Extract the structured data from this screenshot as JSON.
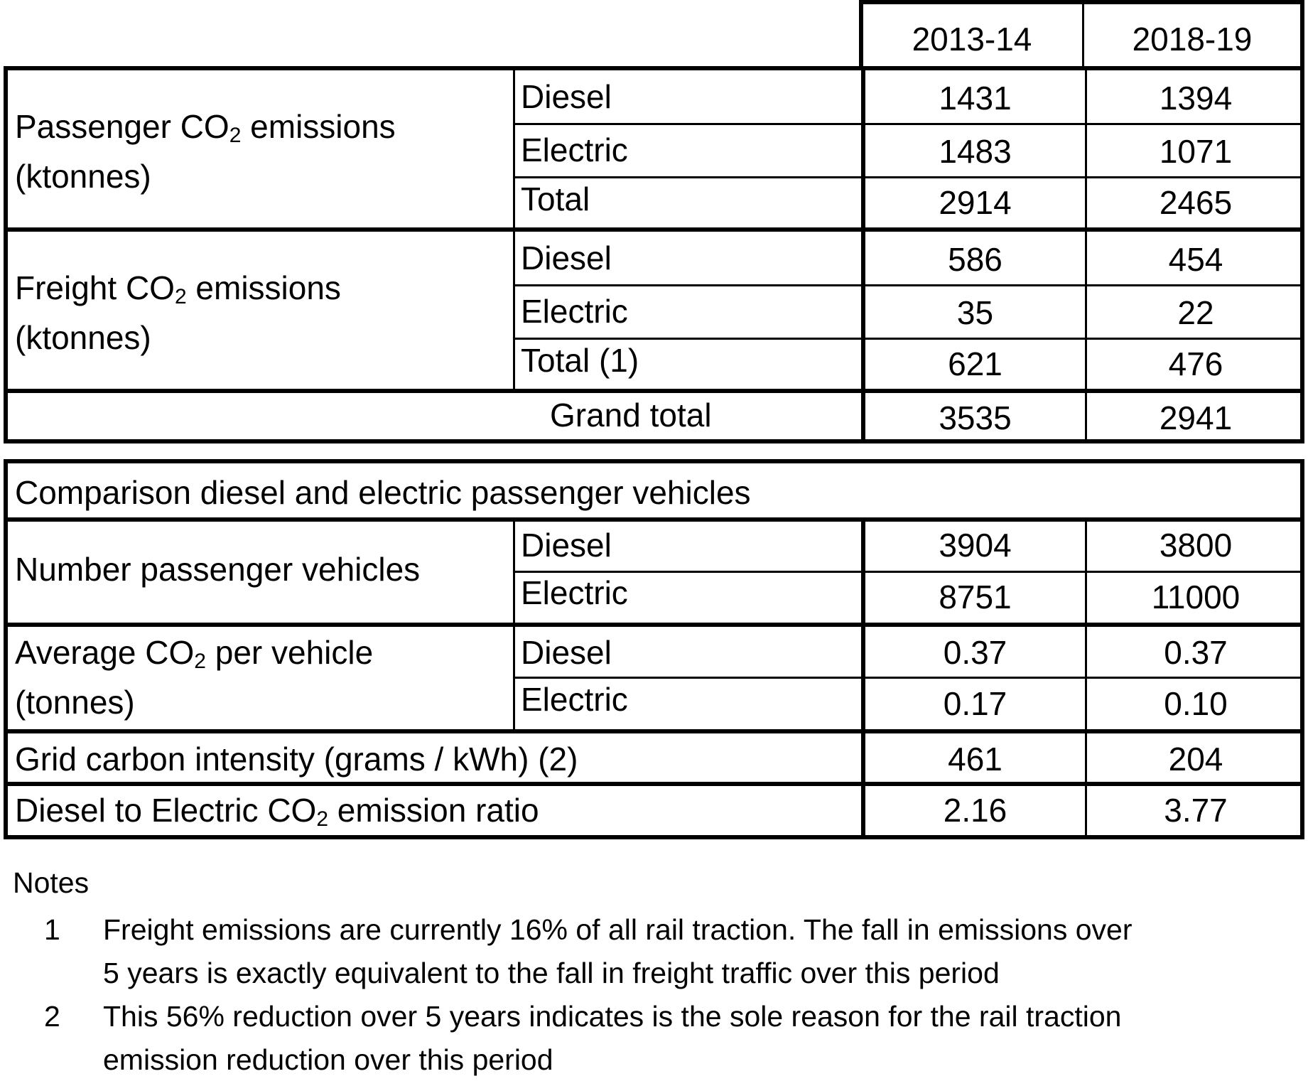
{
  "header": {
    "col1": "2013-14",
    "col2": "2018-19"
  },
  "passenger": {
    "label_line1": "Passenger CO",
    "label_sub": "2",
    "label_line1_tail": " emissions",
    "label_line2": "(ktonnes)",
    "rows": [
      {
        "type": "Diesel",
        "v1": "1431",
        "v2": "1394"
      },
      {
        "type": "Electric",
        "v1": "1483",
        "v2": "1071"
      },
      {
        "type": "Total",
        "v1": "2914",
        "v2": "2465"
      }
    ]
  },
  "freight": {
    "label_line1": "Freight CO",
    "label_sub": "2",
    "label_line1_tail": " emissions",
    "label_line2": "(ktonnes)",
    "rows": [
      {
        "type": "Diesel",
        "v1": "586",
        "v2": "454"
      },
      {
        "type": "Electric",
        "v1": "35",
        "v2": "22"
      },
      {
        "type": "Total (1)",
        "v1": "621",
        "v2": "476"
      }
    ]
  },
  "grand_total": {
    "label": "Grand total",
    "v1": "3535",
    "v2": "2941"
  },
  "comparison": {
    "title": "Comparison diesel and electric passenger vehicles",
    "number_vehicles": {
      "label": "Number passenger vehicles",
      "rows": [
        {
          "type": "Diesel",
          "v1": "3904",
          "v2": "3800"
        },
        {
          "type": "Electric",
          "v1": "8751",
          "v2": "11000"
        }
      ]
    },
    "average_co2": {
      "label_line1": "Average CO",
      "label_sub": "2",
      "label_line1_tail": " per vehicle",
      "label_line2": "(tonnes)",
      "rows": [
        {
          "type": "Diesel",
          "v1": "0.37",
          "v2": "0.37"
        },
        {
          "type": "Electric",
          "v1": "0.17",
          "v2": "0.10"
        }
      ]
    },
    "grid": {
      "label": "Grid carbon intensity (grams / kWh) (2)",
      "v1": "461",
      "v2": "204"
    },
    "ratio": {
      "label_pre": "Diesel to Electric CO",
      "label_sub": "2",
      "label_post": " emission ratio",
      "v1": "2.16",
      "v2": "3.77"
    }
  },
  "notes": {
    "title": "Notes",
    "items": [
      {
        "num": "1",
        "line1": "Freight emissions are currently 16% of all rail traction. The fall in emissions over",
        "line2": "5 years is exactly equivalent to the fall in freight traffic over this period"
      },
      {
        "num": "2",
        "line1": "This 56% reduction over 5 years indicates is the sole reason for the rail traction",
        "line2": "emission reduction over this period"
      }
    ]
  }
}
